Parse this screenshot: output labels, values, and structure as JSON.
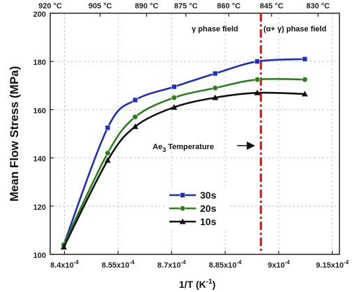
{
  "chart_data": {
    "type": "line",
    "xlabel": "1/T (K",
    "xlabel_sup": "-1",
    "xlabel_end": ")",
    "ylabel": "Mean Flow Stress (MPa)",
    "xlim": [
      0.000836,
      0.000917
    ],
    "ylim": [
      100,
      200
    ],
    "x_ticks": [
      0.00084,
      0.000855,
      0.00087,
      0.000885,
      0.0009,
      0.000915
    ],
    "x_tick_labels": [
      "8.4x10",
      "8.55x10",
      "8.7x10",
      "8.85x10",
      "9x10",
      "9.15x10"
    ],
    "x_tick_exp": "-4",
    "y_ticks": [
      100,
      120,
      140,
      160,
      180,
      200
    ],
    "y_tick_labels": [
      "100",
      "120",
      "140",
      "160",
      "180",
      "200"
    ],
    "top_axis": {
      "tick_labels": [
        "920 °C",
        "905 °C",
        "890 °C",
        "875 °C",
        "860 °C",
        "845 °C",
        "830 °C"
      ],
      "tick_positions": [
        0.000836,
        0.00085,
        0.000863,
        0.000874,
        0.000886,
        0.000898,
        0.000911
      ]
    },
    "grid": true,
    "legend_position": "bottom-center",
    "series": [
      {
        "name": "30s",
        "color": "#1f2fb5",
        "marker": "square",
        "x": [
          0.0008398,
          0.0008521,
          0.0008598,
          0.0008707,
          0.0008822,
          0.000894,
          0.0009073
        ],
        "values": [
          104,
          152.5,
          164,
          169.5,
          175,
          180,
          181
        ]
      },
      {
        "name": "20s",
        "color": "#2e7d1e",
        "marker": "circle",
        "x": [
          0.0008398,
          0.0008521,
          0.0008598,
          0.0008707,
          0.0008822,
          0.000894,
          0.0009073
        ],
        "values": [
          104,
          142,
          157,
          165,
          169,
          172.5,
          172.5
        ]
      },
      {
        "name": "10s",
        "color": "#111111",
        "marker": "triangle",
        "x": [
          0.0008398,
          0.0008521,
          0.0008598,
          0.0008707,
          0.0008822,
          0.000894,
          0.0009073
        ],
        "values": [
          103,
          139,
          153,
          161,
          165,
          167,
          166.5
        ]
      }
    ],
    "vline": {
      "x": 0.000895,
      "color": "#e01010"
    },
    "annotations": {
      "gamma_field": "γ phase field",
      "alpha_gamma_field": "(α+ γ) phase field",
      "ae3_main": "Ae",
      "ae3_sub": "3",
      "ae3_rest": " Temperature"
    }
  }
}
